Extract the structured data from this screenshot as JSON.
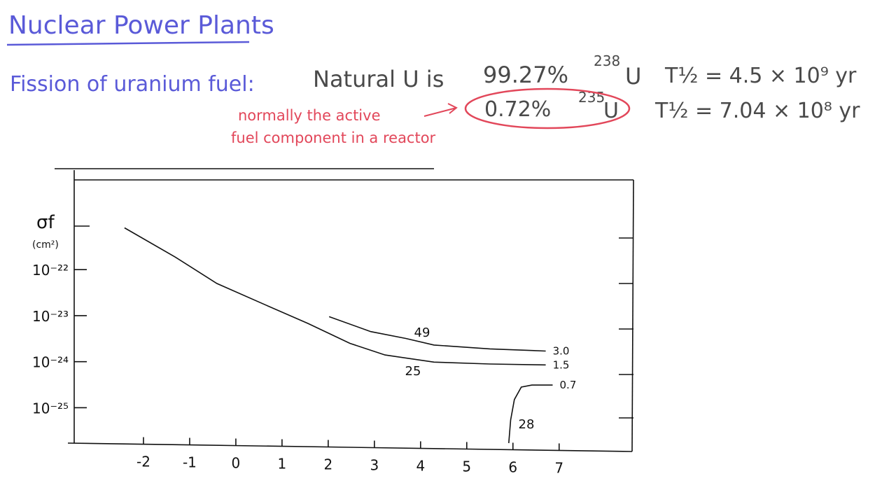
{
  "header": {
    "title": "Nuclear Power Plants",
    "subject": "Fission of uranium fuel:",
    "intro": "Natural U is",
    "isotopes": [
      {
        "percent": "99.27%",
        "mass": "238",
        "symbol": "U",
        "half_life": "T½ = 4.5 × 10⁹ yr"
      },
      {
        "percent": "0.72%",
        "mass": "235",
        "symbol": "U",
        "half_life": "T½ = 7.04 × 10⁸ yr"
      }
    ],
    "note": [
      "normally the active",
      "fuel component in a reactor"
    ]
  },
  "chart_data": {
    "type": "line",
    "ylabel": "σf",
    "yunit": "(cm²)",
    "log_y": true,
    "xlim": [
      -3.5,
      8.58
    ],
    "xticks": [
      -2,
      -1,
      0,
      1,
      2,
      3,
      4,
      5,
      6,
      7
    ],
    "ylim": [
      1.7e-26,
      1.14e-20
    ],
    "yticks": [
      {
        "value": 1e-22,
        "label": "10⁻²²"
      },
      {
        "value": 1e-23,
        "label": "10⁻²³"
      },
      {
        "value": 1e-24,
        "label": "10⁻²⁴"
      },
      {
        "value": 1e-25,
        "label": "10⁻²⁵"
      }
    ],
    "series": [
      {
        "name": "25",
        "color": "#111111",
        "end_label": "1.5",
        "x": [
          -2.41,
          -1.32,
          -0.41,
          0.65,
          1.56,
          2.47,
          3.23,
          4.29,
          5.5,
          6.71
        ],
        "values": [
          8.1e-22,
          1.9e-22,
          5e-23,
          1.7e-23,
          6.8e-24,
          2.5e-24,
          1.4e-24,
          9.8e-25,
          8.9e-25,
          8.5e-25
        ]
      },
      {
        "name": "49",
        "color": "#111111",
        "end_label": "3.0",
        "x": [
          2.02,
          2.92,
          3.68,
          4.29,
          5.5,
          6.71
        ],
        "values": [
          9.5e-24,
          4.5e-24,
          3.2e-24,
          2.3e-24,
          1.9e-24,
          1.7e-24
        ]
      },
      {
        "name": "28",
        "color": "#111111",
        "end_label": "0.7",
        "x": [
          5.91,
          5.95,
          6.03,
          6.18,
          6.41,
          6.86
        ],
        "values": [
          1.7e-26,
          5.4e-26,
          1.5e-25,
          2.8e-25,
          3.1e-25,
          3.1e-25
        ]
      }
    ]
  }
}
